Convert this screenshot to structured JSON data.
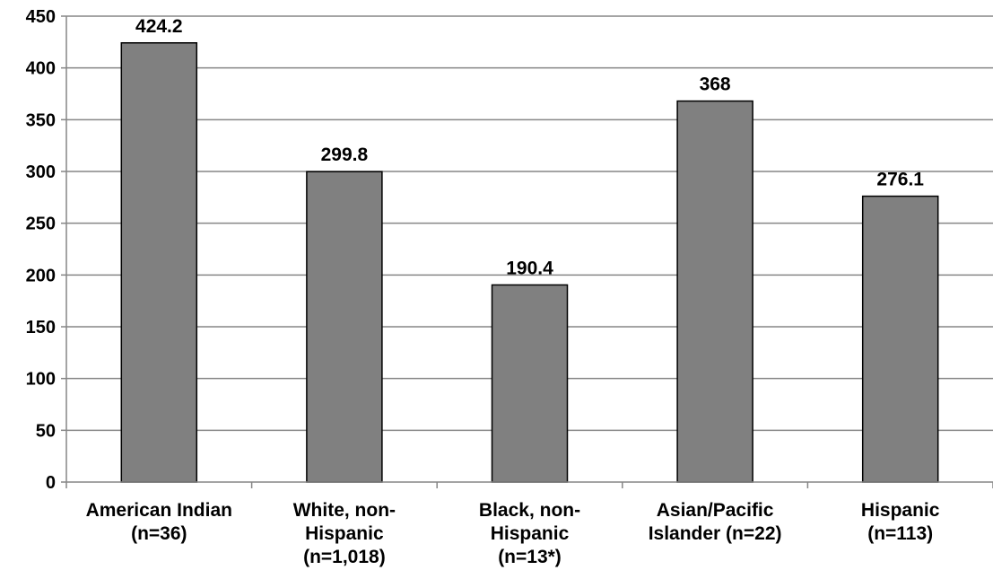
{
  "chart_data": {
    "type": "bar",
    "categories": [
      [
        "American Indian",
        "(n=36)"
      ],
      [
        "White, non-",
        "Hispanic",
        "(n=1,018)"
      ],
      [
        "Black, non-",
        "Hispanic",
        "(n=13*)"
      ],
      [
        "Asian/Pacific",
        "Islander (n=22)"
      ],
      [
        "Hispanic",
        "(n=113)"
      ]
    ],
    "values": [
      424.2,
      299.8,
      190.4,
      368,
      276.1
    ],
    "data_labels": [
      "424.2",
      "299.8",
      "190.4",
      "368",
      "276.1"
    ],
    "ylim": [
      0,
      450
    ],
    "yticks": [
      0,
      50,
      100,
      150,
      200,
      250,
      300,
      350,
      400,
      450
    ],
    "grid": true,
    "title": "",
    "xlabel": "",
    "ylabel": "",
    "colors": {
      "bar_fill": "#808080",
      "bar_stroke": "#000000",
      "grid": "#868686",
      "axis": "#868686"
    }
  }
}
